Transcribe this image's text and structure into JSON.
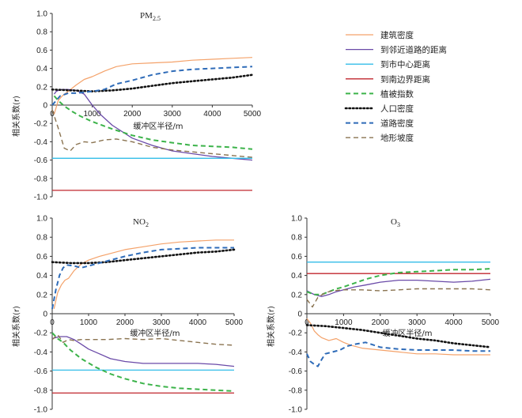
{
  "chart_data": [
    {
      "type": "line",
      "title": "PM",
      "title_sub": "2.5",
      "xlabel": "缓冲区半径/m",
      "ylabel": "相关系数(r)",
      "xlim": [
        0,
        5000
      ],
      "ylim": [
        -1.0,
        1.0
      ],
      "xticks": [
        0,
        1000,
        2000,
        3000,
        4000,
        5000
      ],
      "yticks": [
        1.0,
        0.8,
        0.6,
        0.4,
        0.2,
        0,
        -0.2,
        -0.4,
        -0.6,
        -0.8,
        -1.0
      ],
      "ytick_labels": [
        "1.0",
        "0.8",
        "0.6",
        "0.4",
        "0.2",
        "0",
        "-0.2",
        "-0.4",
        "-0.6",
        "-0.8",
        "-1.0"
      ],
      "series": [
        {
          "key": "jianzhu",
          "x": [
            50,
            150,
            250,
            400,
            600,
            800,
            1000,
            1300,
            1600,
            2000,
            2500,
            3000,
            3500,
            4000,
            4500,
            5000
          ],
          "y": [
            -0.1,
            0.05,
            0.1,
            0.15,
            0.22,
            0.28,
            0.31,
            0.37,
            0.42,
            0.45,
            0.46,
            0.47,
            0.49,
            0.5,
            0.51,
            0.52
          ]
        },
        {
          "key": "linjin",
          "x": [
            50,
            100,
            200,
            400,
            600,
            800,
            1000,
            1200,
            1500,
            2000,
            2500,
            3000,
            3500,
            4000,
            4500,
            5000
          ],
          "y": [
            0.12,
            0.15,
            0.17,
            0.17,
            0.16,
            0.12,
            0.0,
            -0.1,
            -0.22,
            -0.36,
            -0.44,
            -0.5,
            -0.53,
            -0.56,
            -0.58,
            -0.6
          ]
        },
        {
          "key": "shizhongxin",
          "x": [
            0,
            5000
          ],
          "y": [
            -0.58,
            -0.58
          ]
        },
        {
          "key": "nanbianjie",
          "x": [
            0,
            5000
          ],
          "y": [
            -0.93,
            -0.93
          ]
        },
        {
          "key": "zhibei",
          "x": [
            50,
            150,
            300,
            500,
            700,
            1000,
            1500,
            2000,
            2500,
            3000,
            3500,
            4000,
            4500,
            5000
          ],
          "y": [
            0.1,
            0.05,
            -0.01,
            -0.07,
            -0.12,
            -0.18,
            -0.26,
            -0.33,
            -0.38,
            -0.41,
            -0.44,
            -0.45,
            -0.46,
            -0.48
          ]
        },
        {
          "key": "renkou",
          "x": [
            0,
            500,
            1000,
            1500,
            2000,
            2500,
            3000,
            3500,
            4000,
            4500,
            5000
          ],
          "y": [
            0.17,
            0.16,
            0.15,
            0.16,
            0.18,
            0.21,
            0.24,
            0.26,
            0.28,
            0.3,
            0.33
          ]
        },
        {
          "key": "daolu",
          "x": [
            0,
            100,
            200,
            400,
            600,
            800,
            1000,
            1300,
            1600,
            2000,
            2500,
            3000,
            3500,
            4000,
            4500,
            5000
          ],
          "y": [
            0.0,
            0.05,
            0.1,
            0.13,
            0.13,
            0.14,
            0.15,
            0.17,
            0.23,
            0.27,
            0.33,
            0.37,
            0.39,
            0.4,
            0.41,
            0.42
          ]
        },
        {
          "key": "dixing",
          "x": [
            0,
            150,
            300,
            450,
            600,
            800,
            1000,
            1300,
            1600,
            2000,
            2500,
            3000,
            3500,
            4000,
            4500,
            5000
          ],
          "y": [
            -0.05,
            -0.25,
            -0.47,
            -0.5,
            -0.43,
            -0.4,
            -0.41,
            -0.38,
            -0.37,
            -0.4,
            -0.46,
            -0.49,
            -0.51,
            -0.53,
            -0.55,
            -0.57
          ]
        }
      ]
    },
    {
      "type": "line",
      "title": "NO",
      "title_sub": "2",
      "xlabel": "缓冲区半径/m",
      "ylabel": "相关系数(r)",
      "xlim": [
        0,
        5000
      ],
      "ylim": [
        -1.0,
        1.0
      ],
      "xticks": [
        0,
        1000,
        2000,
        3000,
        4000,
        5000
      ],
      "yticks": [
        1.0,
        0.8,
        0.6,
        0.4,
        0.2,
        0,
        -0.2,
        -0.4,
        -0.6,
        -0.8,
        -1.0
      ],
      "ytick_labels": [
        "1.0",
        "0.8",
        "0.6",
        "0.4",
        "0.2",
        "0",
        "-0.2",
        "-0.4",
        "-0.6",
        "-0.8",
        "-1.0"
      ],
      "series": [
        {
          "key": "jianzhu",
          "x": [
            50,
            150,
            250,
            350,
            450,
            600,
            800,
            1000,
            1300,
            1600,
            2000,
            2500,
            3000,
            3500,
            4000,
            4500,
            5000
          ],
          "y": [
            0.05,
            0.22,
            0.3,
            0.35,
            0.37,
            0.45,
            0.52,
            0.56,
            0.6,
            0.63,
            0.67,
            0.7,
            0.73,
            0.75,
            0.76,
            0.77,
            0.77
          ]
        },
        {
          "key": "linjin",
          "x": [
            0,
            200,
            400,
            600,
            800,
            1000,
            1300,
            1600,
            2000,
            2500,
            3000,
            3500,
            4000,
            4500,
            5000
          ],
          "y": [
            -0.26,
            -0.24,
            -0.24,
            -0.27,
            -0.32,
            -0.37,
            -0.42,
            -0.47,
            -0.5,
            -0.52,
            -0.52,
            -0.52,
            -0.52,
            -0.53,
            -0.55
          ]
        },
        {
          "key": "shizhongxin",
          "x": [
            0,
            5000
          ],
          "y": [
            -0.59,
            -0.59
          ]
        },
        {
          "key": "nanbianjie",
          "x": [
            0,
            5000
          ],
          "y": [
            -0.83,
            -0.83
          ]
        },
        {
          "key": "zhibei",
          "x": [
            0,
            150,
            300,
            500,
            800,
            1200,
            1600,
            2000,
            2500,
            3000,
            3500,
            4000,
            4500,
            5000
          ],
          "y": [
            -0.2,
            -0.26,
            -0.3,
            -0.38,
            -0.47,
            -0.56,
            -0.63,
            -0.68,
            -0.73,
            -0.76,
            -0.78,
            -0.79,
            -0.8,
            -0.81
          ]
        },
        {
          "key": "renkou",
          "x": [
            0,
            500,
            1000,
            1500,
            2000,
            2500,
            3000,
            3500,
            4000,
            4500,
            5000
          ],
          "y": [
            0.54,
            0.53,
            0.53,
            0.54,
            0.56,
            0.58,
            0.6,
            0.62,
            0.64,
            0.65,
            0.67
          ]
        },
        {
          "key": "daolu",
          "x": [
            0,
            100,
            200,
            300,
            400,
            600,
            800,
            1000,
            1300,
            1600,
            2000,
            2500,
            3000,
            3500,
            4000,
            4500,
            5000
          ],
          "y": [
            0.05,
            0.25,
            0.4,
            0.48,
            0.51,
            0.5,
            0.48,
            0.5,
            0.53,
            0.56,
            0.6,
            0.64,
            0.67,
            0.68,
            0.69,
            0.69,
            0.69
          ]
        },
        {
          "key": "dixing",
          "x": [
            0,
            150,
            300,
            450,
            600,
            800,
            1000,
            1500,
            2000,
            2500,
            3000,
            3500,
            4000,
            4500,
            5000
          ],
          "y": [
            -0.27,
            -0.22,
            -0.3,
            -0.27,
            -0.28,
            -0.27,
            -0.27,
            -0.27,
            -0.26,
            -0.27,
            -0.26,
            -0.28,
            -0.3,
            -0.32,
            -0.33
          ]
        }
      ]
    },
    {
      "type": "line",
      "title": "O",
      "title_sub": "3",
      "xlabel": "缓冲区半径/m",
      "ylabel": "相关系数(r)",
      "xlim": [
        0,
        5000
      ],
      "ylim": [
        -1.0,
        1.0
      ],
      "xticks": [
        0,
        1000,
        2000,
        3000,
        4000,
        5000
      ],
      "yticks": [
        1.0,
        0.8,
        0.6,
        0.4,
        0.2,
        0,
        -0.2,
        -0.4,
        -0.6,
        -0.8,
        -1.0
      ],
      "ytick_labels": [
        "1.0",
        "0.8",
        "0.6",
        "0.4",
        "0.2",
        "0",
        "-0.2",
        "-0.4",
        "-0.6",
        "-0.8",
        "-1.0"
      ],
      "series": [
        {
          "key": "jianzhu",
          "x": [
            0,
            100,
            200,
            300,
            400,
            600,
            800,
            1000,
            1200,
            1500,
            2000,
            2500,
            3000,
            3500,
            4000,
            4500,
            5000
          ],
          "y": [
            -0.05,
            -0.1,
            -0.18,
            -0.22,
            -0.25,
            -0.28,
            -0.26,
            -0.3,
            -0.33,
            -0.36,
            -0.38,
            -0.4,
            -0.42,
            -0.42,
            -0.43,
            -0.43,
            -0.43
          ]
        },
        {
          "key": "linjin",
          "x": [
            0,
            200,
            400,
            600,
            800,
            1000,
            1300,
            1600,
            2000,
            2500,
            3000,
            3500,
            4000,
            4500,
            5000
          ],
          "y": [
            0.24,
            0.2,
            0.18,
            0.2,
            0.23,
            0.25,
            0.28,
            0.3,
            0.33,
            0.35,
            0.35,
            0.34,
            0.33,
            0.34,
            0.36
          ]
        },
        {
          "key": "shizhongxin",
          "x": [
            0,
            5000
          ],
          "y": [
            0.54,
            0.54
          ]
        },
        {
          "key": "nanbianjie",
          "x": [
            0,
            5000
          ],
          "y": [
            0.42,
            0.42
          ]
        },
        {
          "key": "zhibei",
          "x": [
            0,
            200,
            400,
            600,
            800,
            1000,
            1300,
            1600,
            2000,
            2500,
            3000,
            3500,
            4000,
            4500,
            5000
          ],
          "y": [
            0.23,
            0.2,
            0.2,
            0.23,
            0.26,
            0.28,
            0.32,
            0.36,
            0.4,
            0.43,
            0.44,
            0.45,
            0.46,
            0.46,
            0.47
          ]
        },
        {
          "key": "renkou",
          "x": [
            0,
            500,
            1000,
            1500,
            2000,
            2500,
            3000,
            3500,
            4000,
            4500,
            5000
          ],
          "y": [
            -0.12,
            -0.13,
            -0.15,
            -0.17,
            -0.2,
            -0.23,
            -0.26,
            -0.28,
            -0.31,
            -0.33,
            -0.35
          ]
        },
        {
          "key": "daolu",
          "x": [
            0,
            100,
            200,
            300,
            400,
            500,
            700,
            900,
            1100,
            1300,
            1600,
            2000,
            2500,
            3000,
            3500,
            4000,
            4500,
            5000
          ],
          "y": [
            -0.42,
            -0.5,
            -0.53,
            -0.55,
            -0.48,
            -0.42,
            -0.4,
            -0.38,
            -0.34,
            -0.32,
            -0.3,
            -0.35,
            -0.37,
            -0.38,
            -0.38,
            -0.38,
            -0.39,
            -0.39
          ]
        },
        {
          "key": "dixing",
          "x": [
            0,
            150,
            300,
            500,
            700,
            1000,
            1500,
            2000,
            2500,
            3000,
            3500,
            4000,
            4500,
            5000
          ],
          "y": [
            0.15,
            0.07,
            0.17,
            0.22,
            0.24,
            0.25,
            0.25,
            0.24,
            0.25,
            0.26,
            0.26,
            0.26,
            0.26,
            0.25
          ]
        }
      ]
    }
  ],
  "legend": [
    {
      "key": "jianzhu",
      "label": "建筑密度",
      "color": "#f4a26a",
      "dash": "",
      "width": 1.2
    },
    {
      "key": "linjin",
      "label": "到邻近道路的距离",
      "color": "#6a4aa8",
      "dash": "",
      "width": 1.3
    },
    {
      "key": "shizhongxin",
      "label": "到市中心距离",
      "color": "#33bde8",
      "dash": "",
      "width": 1.3
    },
    {
      "key": "nanbianjie",
      "label": "到南边界距离",
      "color": "#c0262d",
      "dash": "",
      "width": 1.3
    },
    {
      "key": "zhibei",
      "label": "植被指数",
      "color": "#3cb34a",
      "dash": "6,4",
      "width": 2
    },
    {
      "key": "renkou",
      "label": "人口密度",
      "color": "#111111",
      "dash": "1.5,3",
      "width": 2.6
    },
    {
      "key": "daolu",
      "label": "道路密度",
      "color": "#2e6bb8",
      "dash": "6,4",
      "width": 2
    },
    {
      "key": "dixing",
      "label": "地形坡度",
      "color": "#8a7350",
      "dash": "6,4",
      "width": 1.4
    }
  ]
}
